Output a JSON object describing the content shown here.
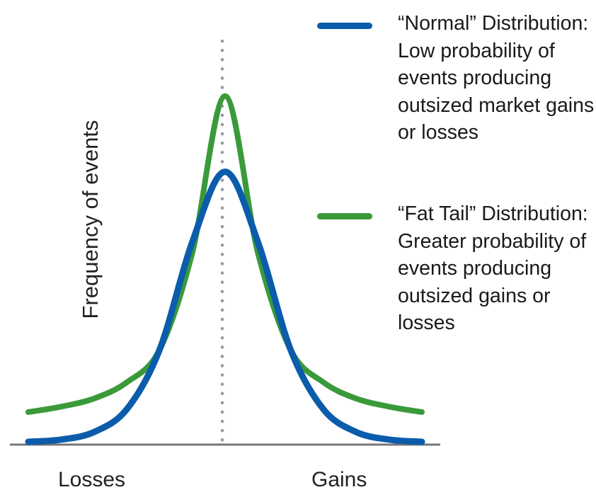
{
  "chart_data": {
    "type": "line",
    "xlabel": "",
    "ylabel": "Frequency of events",
    "x_ticks": [
      "Losses",
      "Gains"
    ],
    "center_marker": "dotted vertical line at mean",
    "grid": false,
    "legend_position": "right",
    "series": [
      {
        "key": "normal",
        "name": "“Normal” Distribution: Low probability of events producing outsized market gains or losses",
        "color": "#0b5cab",
        "x": [
          -3,
          -2.5,
          -2,
          -1.5,
          -1,
          -0.5,
          0,
          0.5,
          1,
          1.5,
          2,
          2.5,
          3
        ],
        "values": [
          0.0,
          0.004,
          0.018,
          0.06,
          0.17,
          0.37,
          0.5,
          0.37,
          0.17,
          0.06,
          0.018,
          0.004,
          0.0
        ]
      },
      {
        "key": "fat",
        "name": "“Fat Tail” Distribution: Greater probability of events producing outsized gains or losses",
        "color": "#3a9a3a",
        "x": [
          -3,
          -2.5,
          -2,
          -1.5,
          -1,
          -0.5,
          0,
          0.5,
          1,
          1.5,
          2,
          2.5,
          3
        ],
        "values": [
          0.055,
          0.065,
          0.08,
          0.11,
          0.17,
          0.35,
          0.64,
          0.35,
          0.17,
          0.11,
          0.08,
          0.065,
          0.055
        ]
      }
    ],
    "xlim": [
      -3,
      3
    ],
    "ylim": [
      0,
      0.7
    ]
  },
  "legend": {
    "normal_text": "“Normal” Distribution: Low probability of events producing outsized market gains or losses",
    "fat_text": "“Fat Tail” Distribution: Greater probability of events producing outsized gains or losses"
  }
}
